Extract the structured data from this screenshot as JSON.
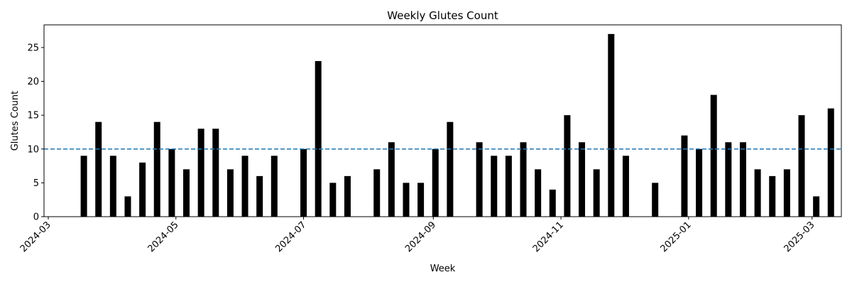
{
  "chart_data": {
    "type": "bar",
    "title": "Weekly Glutes Count",
    "xlabel": "Week",
    "ylabel": "Glutes Count",
    "x_range": [
      "2024-03-01",
      "2025-03-15"
    ],
    "ylim": [
      0,
      28.35
    ],
    "y_ticks": [
      0,
      5,
      10,
      15,
      20,
      25
    ],
    "x_ticks": [
      "2024-03",
      "2024-05",
      "2024-07",
      "2024-09",
      "2024-11",
      "2025-01",
      "2025-03"
    ],
    "x_tick_dates": [
      "2024-03-01",
      "2024-05-01",
      "2024-07-01",
      "2024-09-01",
      "2024-11-01",
      "2025-01-01",
      "2025-03-01"
    ],
    "bar_color": "#000000",
    "reference_line": {
      "value": 10,
      "style": "dashed",
      "color": "#1f77b4"
    },
    "grid": false,
    "series": [
      {
        "dates": [
          "2024-03-18",
          "2024-03-25",
          "2024-04-01",
          "2024-04-08",
          "2024-04-15",
          "2024-04-22",
          "2024-04-29",
          "2024-05-06",
          "2024-05-13",
          "2024-05-20",
          "2024-05-27",
          "2024-06-03",
          "2024-06-10",
          "2024-06-17",
          "2024-07-01",
          "2024-07-08",
          "2024-07-15",
          "2024-07-22",
          "2024-08-05",
          "2024-08-12",
          "2024-08-19",
          "2024-08-26",
          "2024-09-02",
          "2024-09-09",
          "2024-09-23",
          "2024-09-30",
          "2024-10-07",
          "2024-10-14",
          "2024-10-21",
          "2024-10-28",
          "2024-11-04",
          "2024-11-11",
          "2024-11-18",
          "2024-11-25",
          "2024-12-02",
          "2024-12-16",
          "2024-12-30",
          "2025-01-06",
          "2025-01-13",
          "2025-01-20",
          "2025-01-27",
          "2025-02-03",
          "2025-02-10",
          "2025-02-17",
          "2025-02-24",
          "2025-03-03",
          "2025-03-10"
        ],
        "values": [
          9,
          14,
          9,
          3,
          8,
          14,
          10,
          7,
          13,
          13,
          7,
          9,
          6,
          9,
          10,
          23,
          5,
          6,
          7,
          11,
          5,
          5,
          10,
          14,
          11,
          9,
          9,
          11,
          7,
          4,
          15,
          11,
          7,
          27,
          9,
          5,
          12,
          10,
          18,
          11,
          11,
          7,
          6,
          7,
          15,
          3,
          16
        ]
      }
    ]
  }
}
